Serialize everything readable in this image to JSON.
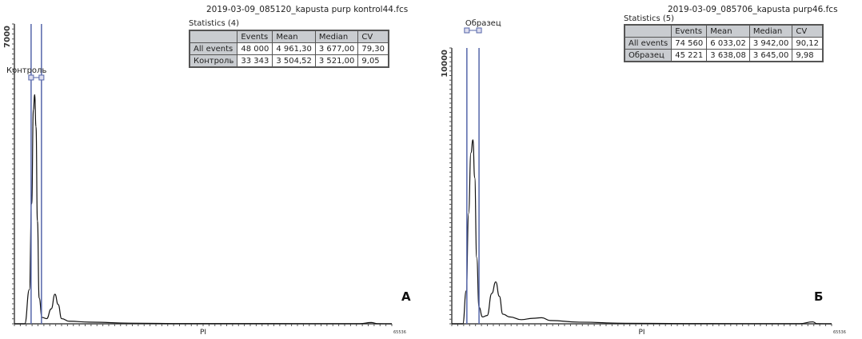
{
  "chart_data": [
    {
      "type": "line",
      "file_name": "2019-03-09_085120_kapusta purp kontrol44.fcs",
      "panel_letter": "A",
      "xlabel": "PI",
      "x_tick_max_label": "65536",
      "y_tick_max_label": "7000",
      "xlim": [
        0,
        65536
      ],
      "ylim": [
        0,
        7000
      ],
      "gate": {
        "label": "Контроль",
        "range": [
          2900,
          4700
        ]
      },
      "series": [
        {
          "points": [
            [
              0,
              0
            ],
            [
              1800,
              0
            ],
            [
              2600,
              800
            ],
            [
              3000,
              2800
            ],
            [
              3300,
              5000
            ],
            [
              3520,
              5350
            ],
            [
              3750,
              4600
            ],
            [
              4000,
              2400
            ],
            [
              4300,
              600
            ],
            [
              4800,
              150
            ],
            [
              5600,
              120
            ],
            [
              6400,
              350
            ],
            [
              7040,
              690
            ],
            [
              7600,
              450
            ],
            [
              8200,
              120
            ],
            [
              9500,
              60
            ],
            [
              13000,
              40
            ],
            [
              20000,
              15
            ],
            [
              30000,
              5
            ],
            [
              60000,
              3
            ],
            [
              62000,
              30
            ],
            [
              63000,
              3
            ],
            [
              65536,
              0
            ]
          ]
        }
      ],
      "statistics": {
        "title": "Statistics (4)",
        "columns": [
          "",
          "Events",
          "Mean",
          "Median",
          "CV"
        ],
        "rows": [
          [
            "All events",
            "48 000",
            "4 961,30",
            "3 677,00",
            "79,30"
          ],
          [
            "Контроль",
            "33 343",
            "3 504,52",
            "3 521,00",
            "9,05"
          ]
        ]
      }
    },
    {
      "type": "line",
      "file_name": "2019-03-09_085706_kapusta purp46.fcs",
      "panel_letter": "Б",
      "xlabel": "PI",
      "x_tick_max_label": "65536",
      "y_tick_max_label": "10000",
      "xlim": [
        0,
        65536
      ],
      "ylim": [
        0,
        10000
      ],
      "gate": {
        "label": "Образец",
        "range": [
          2600,
          4700
        ]
      },
      "series": [
        {
          "points": [
            [
              0,
              0
            ],
            [
              1900,
              0
            ],
            [
              2500,
              1200
            ],
            [
              2900,
              4000
            ],
            [
              3300,
              6200
            ],
            [
              3650,
              6670
            ],
            [
              3950,
              5300
            ],
            [
              4300,
              2400
            ],
            [
              4700,
              600
            ],
            [
              5300,
              250
            ],
            [
              6100,
              300
            ],
            [
              6900,
              1100
            ],
            [
              7590,
              1520
            ],
            [
              8200,
              1000
            ],
            [
              8800,
              350
            ],
            [
              10000,
              250
            ],
            [
              12000,
              150
            ],
            [
              14000,
              200
            ],
            [
              15500,
              220
            ],
            [
              17000,
              120
            ],
            [
              22000,
              60
            ],
            [
              30000,
              20
            ],
            [
              40000,
              8
            ],
            [
              60000,
              4
            ],
            [
              62300,
              70
            ],
            [
              63000,
              4
            ],
            [
              65536,
              0
            ]
          ]
        }
      ],
      "statistics": {
        "title": "Statistics (5)",
        "columns": [
          "",
          "Events",
          "Mean",
          "Median",
          "CV"
        ],
        "rows": [
          [
            "All events",
            "74 560",
            "6 033,02",
            "3 942,00",
            "90,12"
          ],
          [
            "Образец",
            "45 221",
            "3 638,08",
            "3 645,00",
            "9,98"
          ]
        ]
      }
    }
  ],
  "colors": {
    "gate": "#5566aa",
    "curve": "#111111",
    "axis": "#444444"
  }
}
